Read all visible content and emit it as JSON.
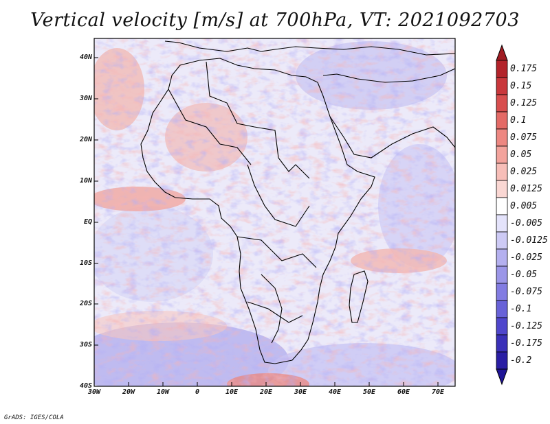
{
  "title": "Vertical velocity [m/s] at 700hPa, VT: 2021092703",
  "credit": "GrADS: IGES/COLA",
  "map": {
    "lat_labels": [
      "40N",
      "30N",
      "20N",
      "10N",
      "EQ",
      "10S",
      "20S",
      "30S",
      "40S"
    ],
    "lon_labels": [
      "30W",
      "20W",
      "10W",
      "0",
      "10E",
      "20E",
      "30E",
      "40E",
      "50E",
      "60E",
      "70E"
    ],
    "lat_range": [
      -40,
      45
    ],
    "lon_range": [
      -30,
      75
    ]
  },
  "colorbar": {
    "labels": [
      "0.175",
      "0.15",
      "0.125",
      "0.1",
      "0.075",
      "0.05",
      "0.025",
      "0.0125",
      "0.005",
      "-0.005",
      "-0.0125",
      "-0.025",
      "-0.05",
      "-0.075",
      "-0.1",
      "-0.125",
      "-0.175",
      "-0.2"
    ],
    "colors": [
      "#b3232a",
      "#c9373b",
      "#d84e4e",
      "#e46a66",
      "#ed8781",
      "#f3a39c",
      "#f7beb8",
      "#fad7d3",
      "#ffffff",
      "#e4e3fb",
      "#cdcaf5",
      "#b4b0ef",
      "#9b96e8",
      "#827ce2",
      "#6862d8",
      "#4f46cc",
      "#3a30b8",
      "#2a1ea4"
    ]
  }
}
